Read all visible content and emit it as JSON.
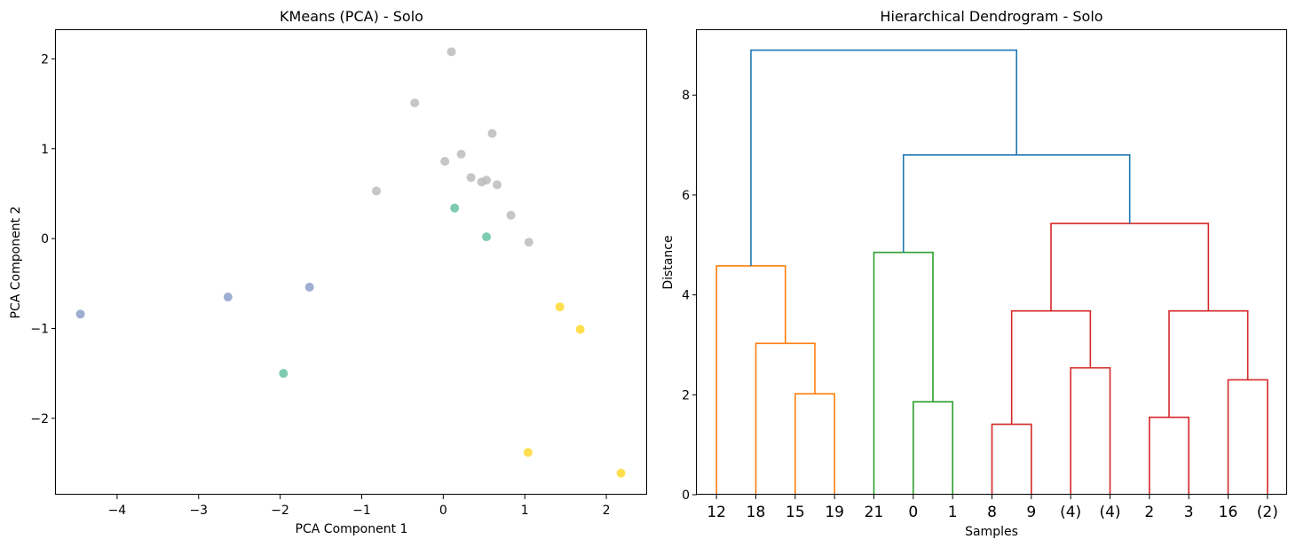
{
  "chart_data": [
    {
      "type": "scatter",
      "title": "KMeans (PCA) - Solo",
      "xlabel": "PCA Component 1",
      "ylabel": "PCA Component 2",
      "xlim": [
        -4.75,
        2.5
      ],
      "ylim": [
        -2.85,
        2.32
      ],
      "xticks": [
        -4,
        -3,
        -2,
        -1,
        0,
        1,
        2
      ],
      "yticks": [
        -2,
        -1,
        0,
        1,
        2
      ],
      "grid": false,
      "colors": [
        "#bcbcbc",
        "#8ea0cb",
        "#66c2a5",
        "#ffd92f"
      ],
      "points": [
        {
          "x": 0.1,
          "y": 2.08,
          "cluster": 0
        },
        {
          "x": -0.35,
          "y": 1.51,
          "cluster": 0
        },
        {
          "x": 0.6,
          "y": 1.17,
          "cluster": 0
        },
        {
          "x": 0.22,
          "y": 0.94,
          "cluster": 0
        },
        {
          "x": 0.02,
          "y": 0.86,
          "cluster": 0
        },
        {
          "x": 0.34,
          "y": 0.68,
          "cluster": 0
        },
        {
          "x": 0.47,
          "y": 0.63,
          "cluster": 0
        },
        {
          "x": 0.53,
          "y": 0.65,
          "cluster": 0
        },
        {
          "x": 0.66,
          "y": 0.6,
          "cluster": 0
        },
        {
          "x": -0.82,
          "y": 0.53,
          "cluster": 0
        },
        {
          "x": 0.83,
          "y": 0.26,
          "cluster": 0
        },
        {
          "x": 1.05,
          "y": -0.04,
          "cluster": 0
        },
        {
          "x": 0.14,
          "y": 0.34,
          "cluster": 2
        },
        {
          "x": 0.53,
          "y": 0.02,
          "cluster": 2
        },
        {
          "x": -1.96,
          "y": -1.5,
          "cluster": 2
        },
        {
          "x": -4.45,
          "y": -0.84,
          "cluster": 1
        },
        {
          "x": -2.64,
          "y": -0.65,
          "cluster": 1
        },
        {
          "x": -1.64,
          "y": -0.54,
          "cluster": 1
        },
        {
          "x": 1.43,
          "y": -0.76,
          "cluster": 3
        },
        {
          "x": 1.68,
          "y": -1.01,
          "cluster": 3
        },
        {
          "x": 1.04,
          "y": -2.38,
          "cluster": 3
        },
        {
          "x": 2.18,
          "y": -2.61,
          "cluster": 3
        }
      ]
    },
    {
      "type": "dendrogram",
      "title": "Hierarchical Dendrogram - Solo",
      "xlabel": "Samples",
      "ylabel": "Distance",
      "ylim": [
        0,
        9.3
      ],
      "yticks": [
        0,
        2,
        4,
        6,
        8
      ],
      "grid": false,
      "leaves": [
        "12",
        "18",
        "15",
        "19",
        "21",
        "0",
        "1",
        "8",
        "9",
        "(4)",
        "(4)",
        "2",
        "3",
        "16",
        "(2)"
      ],
      "links": [
        {
          "left": 2,
          "right": 3,
          "height": 2.02,
          "color": "#ff7f0e"
        },
        {
          "left": 1,
          "right": 2.5,
          "height": 3.03,
          "color": "#ff7f0e"
        },
        {
          "left": 0,
          "right": 1.75,
          "height": 4.58,
          "color": "#ff7f0e"
        },
        {
          "left": 5,
          "right": 6,
          "height": 1.86,
          "color": "#2ca02c"
        },
        {
          "left": 4,
          "right": 5.5,
          "height": 4.85,
          "color": "#2ca02c"
        },
        {
          "left": 7,
          "right": 8,
          "height": 1.41,
          "color": "#d62728"
        },
        {
          "left": 9,
          "right": 10,
          "height": 2.54,
          "color": "#d62728"
        },
        {
          "left": 7.5,
          "right": 9.5,
          "height": 3.68,
          "color": "#d62728"
        },
        {
          "left": 11,
          "right": 12,
          "height": 1.55,
          "color": "#d62728"
        },
        {
          "left": 13,
          "right": 14,
          "height": 2.3,
          "color": "#d62728"
        },
        {
          "left": 11.5,
          "right": 13.5,
          "height": 3.68,
          "color": "#d62728"
        },
        {
          "left": 8.5,
          "right": 12.5,
          "height": 5.43,
          "color": "#d62728"
        },
        {
          "left": 4.75,
          "right": 10.5,
          "height": 6.8,
          "color": "#1f77b4"
        },
        {
          "left": 0.875,
          "right": 7.625,
          "height": 8.9,
          "color": "#1f77b4"
        }
      ]
    }
  ]
}
